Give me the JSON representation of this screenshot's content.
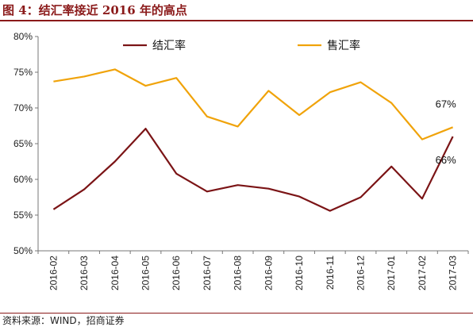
{
  "header": {
    "title": "图 4：结汇率接近 2016 年的高点"
  },
  "footer": {
    "source": "资料来源：WIND，招商证券"
  },
  "colors": {
    "series_1": "#7b1416",
    "series_2": "#f0a30a",
    "accent": "#8b1a1a"
  },
  "chart_data": {
    "type": "line",
    "title": "",
    "xlabel": "",
    "ylabel": "",
    "ylim": [
      50,
      80
    ],
    "yticks": [
      "50%",
      "55%",
      "60%",
      "65%",
      "70%",
      "75%",
      "80%"
    ],
    "legend_position": "top",
    "grid": false,
    "categories": [
      "2016-02",
      "2016-03",
      "2016-04",
      "2016-05",
      "2016-06",
      "2016-07",
      "2016-08",
      "2016-09",
      "2016-10",
      "2016-11",
      "2016-12",
      "2017-01",
      "2017-02",
      "2017-03"
    ],
    "series": [
      {
        "name": "结汇率",
        "values": [
          55.8,
          58.6,
          62.5,
          67.1,
          60.8,
          58.3,
          59.2,
          58.7,
          57.6,
          55.6,
          57.5,
          61.8,
          57.3,
          66.0
        ]
      },
      {
        "name": "售汇率",
        "values": [
          73.7,
          74.4,
          75.4,
          73.1,
          74.2,
          68.8,
          67.4,
          72.4,
          69.0,
          72.2,
          73.6,
          70.7,
          65.6,
          67.3
        ]
      }
    ],
    "annotations": [
      {
        "series": 0,
        "index": 13,
        "text": "66%"
      },
      {
        "series": 1,
        "index": 13,
        "text": "67%"
      }
    ]
  }
}
